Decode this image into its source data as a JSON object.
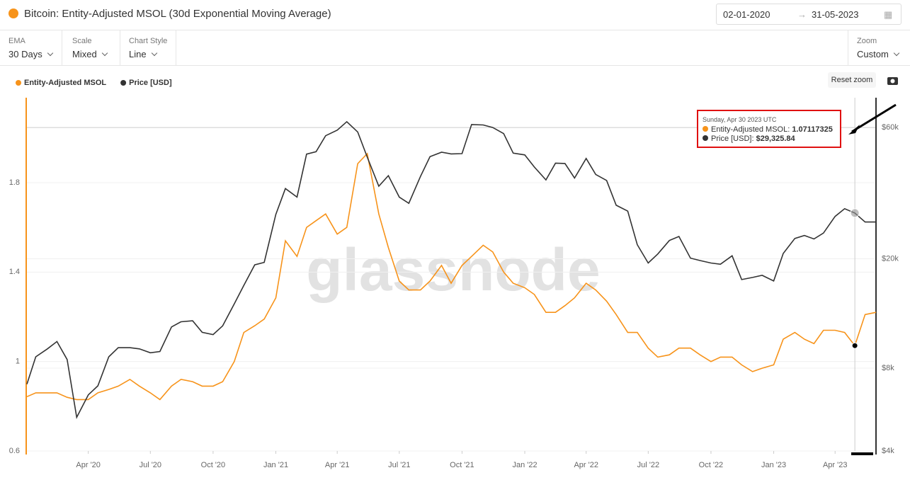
{
  "header": {
    "title": "Bitcoin: Entity-Adjusted MSOL (30d Exponential Moving Average)",
    "date_from": "02-01-2020",
    "date_to": "31-05-2023"
  },
  "controls": [
    {
      "label": "EMA",
      "value": "30 Days"
    },
    {
      "label": "Scale",
      "value": "Mixed"
    },
    {
      "label": "Chart Style",
      "value": "Line"
    }
  ],
  "zoom": {
    "label": "Zoom",
    "value": "Custom"
  },
  "reset_zoom": "Reset zoom",
  "watermark": "glassnode",
  "chart_data": {
    "type": "line",
    "x": [
      "2020-01-02",
      "2020-01-15",
      "2020-02-01",
      "2020-02-15",
      "2020-03-01",
      "2020-03-15",
      "2020-04-01",
      "2020-04-15",
      "2020-05-01",
      "2020-05-15",
      "2020-06-01",
      "2020-06-15",
      "2020-07-01",
      "2020-07-15",
      "2020-08-01",
      "2020-08-15",
      "2020-09-01",
      "2020-09-15",
      "2020-10-01",
      "2020-10-15",
      "2020-11-01",
      "2020-11-15",
      "2020-12-01",
      "2020-12-15",
      "2021-01-01",
      "2021-01-15",
      "2021-02-01",
      "2021-02-15",
      "2021-03-01",
      "2021-03-15",
      "2021-04-01",
      "2021-04-15",
      "2021-05-01",
      "2021-05-15",
      "2021-06-01",
      "2021-06-15",
      "2021-07-01",
      "2021-07-15",
      "2021-08-01",
      "2021-08-15",
      "2021-09-01",
      "2021-09-15",
      "2021-10-01",
      "2021-10-15",
      "2021-11-01",
      "2021-11-15",
      "2021-12-01",
      "2021-12-15",
      "2022-01-01",
      "2022-01-15",
      "2022-02-01",
      "2022-02-15",
      "2022-03-01",
      "2022-03-15",
      "2022-04-01",
      "2022-04-15",
      "2022-05-01",
      "2022-05-15",
      "2022-06-01",
      "2022-06-15",
      "2022-07-01",
      "2022-07-15",
      "2022-08-01",
      "2022-08-15",
      "2022-09-01",
      "2022-09-15",
      "2022-10-01",
      "2022-10-15",
      "2022-11-01",
      "2022-11-15",
      "2022-12-01",
      "2022-12-15",
      "2023-01-01",
      "2023-01-15",
      "2023-02-01",
      "2023-02-15",
      "2023-03-01",
      "2023-03-15",
      "2023-04-01",
      "2023-04-15",
      "2023-04-30",
      "2023-05-15",
      "2023-05-31"
    ],
    "xlim": [
      "2020-01-02",
      "2023-05-31"
    ],
    "xticks": [
      {
        "value": "2020-04-01",
        "label": "Apr '20"
      },
      {
        "value": "2020-07-01",
        "label": "Jul '20"
      },
      {
        "value": "2020-10-01",
        "label": "Oct '20"
      },
      {
        "value": "2021-01-01",
        "label": "Jan '21"
      },
      {
        "value": "2021-04-01",
        "label": "Apr '21"
      },
      {
        "value": "2021-07-01",
        "label": "Jul '21"
      },
      {
        "value": "2021-10-01",
        "label": "Oct '21"
      },
      {
        "value": "2022-01-01",
        "label": "Jan '22"
      },
      {
        "value": "2022-04-01",
        "label": "Apr '22"
      },
      {
        "value": "2022-07-01",
        "label": "Jul '22"
      },
      {
        "value": "2022-10-01",
        "label": "Oct '22"
      },
      {
        "value": "2023-01-01",
        "label": "Jan '23"
      },
      {
        "value": "2023-04-01",
        "label": "Apr '23"
      }
    ],
    "ylim": [
      0.6,
      2.18
    ],
    "yticks": [
      0.6,
      1,
      1.4,
      1.8
    ],
    "y2lim": [
      4000,
      77000
    ],
    "y2scale": "log",
    "y2ticks": [
      {
        "value": 4000,
        "label": "$4k"
      },
      {
        "value": 8000,
        "label": "$8k"
      },
      {
        "value": 20000,
        "label": "$20k"
      },
      {
        "value": 60000,
        "label": "$60k"
      }
    ],
    "grid": true,
    "series": [
      {
        "name": "Entity-Adjusted MSOL",
        "color": "#f7931a",
        "values": [
          0.843,
          0.86,
          0.86,
          0.86,
          0.84,
          0.83,
          0.83,
          0.86,
          0.875,
          0.89,
          0.92,
          0.89,
          0.86,
          0.83,
          0.89,
          0.92,
          0.91,
          0.89,
          0.89,
          0.91,
          1.0,
          1.13,
          1.16,
          1.19,
          1.285,
          1.54,
          1.47,
          1.6,
          1.63,
          1.66,
          1.57,
          1.6,
          1.885,
          1.93,
          1.66,
          1.51,
          1.36,
          1.32,
          1.32,
          1.36,
          1.43,
          1.35,
          1.43,
          1.47,
          1.52,
          1.49,
          1.4,
          1.35,
          1.33,
          1.3,
          1.22,
          1.22,
          1.25,
          1.285,
          1.35,
          1.32,
          1.27,
          1.21,
          1.13,
          1.13,
          1.06,
          1.02,
          1.03,
          1.06,
          1.06,
          1.03,
          1.0,
          1.02,
          1.02,
          0.985,
          0.955,
          0.97,
          0.985,
          1.1,
          1.13,
          1.1,
          1.08,
          1.14,
          1.14,
          1.13,
          1.07117325,
          1.21,
          1.22
        ]
      },
      {
        "name": "Price [USD]",
        "color": "#333333",
        "axis": "y2",
        "values": [
          7000,
          8800,
          9400,
          10000,
          8600,
          5300,
          6400,
          6900,
          8800,
          9500,
          9500,
          9400,
          9100,
          9200,
          11300,
          11800,
          11900,
          10800,
          10600,
          11400,
          13700,
          16000,
          19000,
          19400,
          29000,
          36000,
          33500,
          48000,
          49000,
          56000,
          58700,
          63000,
          57800,
          46800,
          36700,
          40100,
          33500,
          31800,
          39800,
          47000,
          48800,
          48100,
          48200,
          61500,
          61300,
          60000,
          57000,
          48400,
          47700,
          43100,
          38700,
          44500,
          44400,
          39300,
          46300,
          40500,
          38500,
          31300,
          29800,
          22500,
          19300,
          20800,
          23300,
          24100,
          20100,
          19700,
          19300,
          19100,
          20500,
          16800,
          17100,
          17400,
          16600,
          20900,
          23700,
          24300,
          23600,
          24800,
          28500,
          30400,
          29325.84,
          27200,
          27200
        ]
      }
    ],
    "legend": "top-left",
    "tooltip": {
      "title": "Sunday, Apr 30 2023 UTC",
      "index": 80,
      "price_label": "$29,325.84"
    }
  }
}
